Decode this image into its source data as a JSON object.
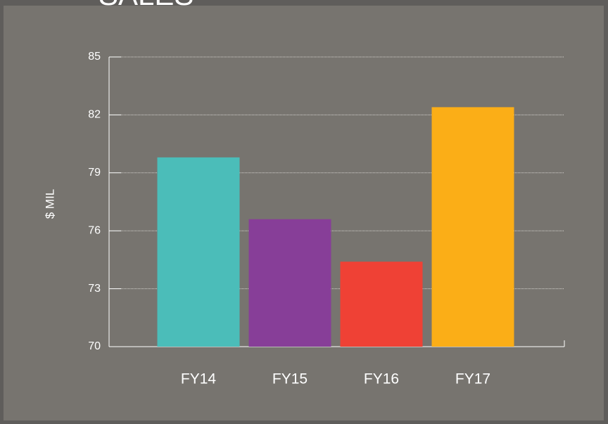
{
  "chart_data": {
    "type": "bar",
    "title": "SALES",
    "ylabel": "$ MIL",
    "categories": [
      "FY14",
      "FY15",
      "FY16",
      "FY17"
    ],
    "values": [
      79.8,
      76.6,
      74.4,
      82.4
    ],
    "colors": [
      "#4bbdb9",
      "#873e98",
      "#ef4135",
      "#fbae17"
    ],
    "ylim": [
      70,
      85
    ],
    "yticks": [
      70,
      73,
      76,
      79,
      82,
      85
    ],
    "grid": true
  }
}
